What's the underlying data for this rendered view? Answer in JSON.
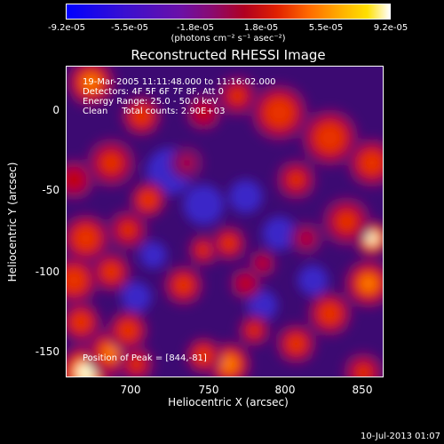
{
  "chart_data": {
    "type": "heatmap",
    "title": "Reconstructed RHESSI Image",
    "xlabel": "Heliocentric X (arcsec)",
    "ylabel": "Heliocentric Y (arcsec)",
    "xlim": [
      663,
      852
    ],
    "ylim": [
      -168,
      18
    ],
    "xticks": [
      700,
      750,
      800,
      850
    ],
    "yticks": [
      0,
      -50,
      -100,
      -150
    ],
    "colorbar": {
      "ticks": [
        "-9.2e-05",
        "-5.5e-05",
        "-1.8e-05",
        "1.8e-05",
        "5.5e-05",
        "9.2e-05"
      ],
      "min": -9.2e-05,
      "max": 9.2e-05,
      "units": "(photons cm⁻² s⁻¹ asec⁻²)"
    },
    "annotations": [
      "19-Mar-2005 11:11:48.000 to 11:16:02.000",
      "Detectors: 4F 5F 6F 7F 8F, Att 0",
      "Energy Range: 25.0 - 50.0 keV",
      "Clean     Total counts: 2.90E+03"
    ],
    "peak_label": "Position of Peak = [844,-81]",
    "peak": [
      844,
      -81
    ],
    "blobs": [
      {
        "x": 675,
        "y": -165,
        "v": 1.0,
        "s": 14
      },
      {
        "x": 690,
        "y": -153,
        "v": 0.8,
        "s": 12
      },
      {
        "x": 672,
        "y": -135,
        "v": 0.7,
        "s": 10
      },
      {
        "x": 700,
        "y": -140,
        "v": 0.7,
        "s": 10
      },
      {
        "x": 668,
        "y": -110,
        "v": 0.75,
        "s": 12
      },
      {
        "x": 690,
        "y": -105,
        "v": 0.65,
        "s": 10
      },
      {
        "x": 675,
        "y": -85,
        "v": 0.75,
        "s": 12
      },
      {
        "x": 700,
        "y": -80,
        "v": 0.55,
        "s": 10
      },
      {
        "x": 690,
        "y": -40,
        "v": 0.6,
        "s": 12
      },
      {
        "x": 668,
        "y": -50,
        "v": 0.5,
        "s": 10
      },
      {
        "x": 712,
        "y": -62,
        "v": 0.75,
        "s": 9
      },
      {
        "x": 708,
        "y": -12,
        "v": 0.7,
        "s": 10
      },
      {
        "x": 678,
        "y": 8,
        "v": 0.8,
        "s": 12
      },
      {
        "x": 733,
        "y": -113,
        "v": 0.65,
        "s": 10
      },
      {
        "x": 745,
        "y": -92,
        "v": 0.55,
        "s": 8
      },
      {
        "x": 760,
        "y": -88,
        "v": 0.6,
        "s": 9
      },
      {
        "x": 770,
        "y": -112,
        "v": 0.45,
        "s": 8
      },
      {
        "x": 780,
        "y": -100,
        "v": 0.4,
        "s": 7
      },
      {
        "x": 760,
        "y": -160,
        "v": 0.85,
        "s": 11
      },
      {
        "x": 800,
        "y": -148,
        "v": 0.65,
        "s": 10
      },
      {
        "x": 775,
        "y": -140,
        "v": 0.55,
        "s": 8
      },
      {
        "x": 820,
        "y": -130,
        "v": 0.7,
        "s": 11
      },
      {
        "x": 843,
        "y": -112,
        "v": 0.8,
        "s": 12
      },
      {
        "x": 845,
        "y": -85,
        "v": 1.0,
        "s": 9
      },
      {
        "x": 830,
        "y": -75,
        "v": 0.6,
        "s": 12
      },
      {
        "x": 820,
        "y": -25,
        "v": 0.75,
        "s": 14
      },
      {
        "x": 845,
        "y": -40,
        "v": 0.7,
        "s": 12
      },
      {
        "x": 790,
        "y": -10,
        "v": 0.75,
        "s": 14
      },
      {
        "x": 800,
        "y": -50,
        "v": 0.55,
        "s": 10
      },
      {
        "x": 765,
        "y": 0,
        "v": 0.55,
        "s": 10
      },
      {
        "x": 745,
        "y": -10,
        "v": 0.5,
        "s": 9
      },
      {
        "x": 745,
        "y": -155,
        "v": 0.7,
        "s": 9
      },
      {
        "x": 705,
        "y": -160,
        "v": 0.55,
        "s": 9
      },
      {
        "x": 840,
        "y": -165,
        "v": 0.55,
        "s": 10
      },
      {
        "x": 806,
        "y": -85,
        "v": 0.35,
        "s": 8
      },
      {
        "x": 735,
        "y": -40,
        "v": 0.3,
        "s": 8
      }
    ],
    "dips": [
      {
        "x": 725,
        "y": -45,
        "s": 14
      },
      {
        "x": 745,
        "y": -65,
        "s": 12
      },
      {
        "x": 770,
        "y": -60,
        "s": 10
      },
      {
        "x": 790,
        "y": -82,
        "s": 10
      },
      {
        "x": 705,
        "y": -120,
        "s": 9
      },
      {
        "x": 715,
        "y": -95,
        "s": 8
      },
      {
        "x": 810,
        "y": -110,
        "s": 9
      },
      {
        "x": 780,
        "y": -125,
        "s": 9
      }
    ]
  },
  "footer": "10-Jul-2013 01:07"
}
